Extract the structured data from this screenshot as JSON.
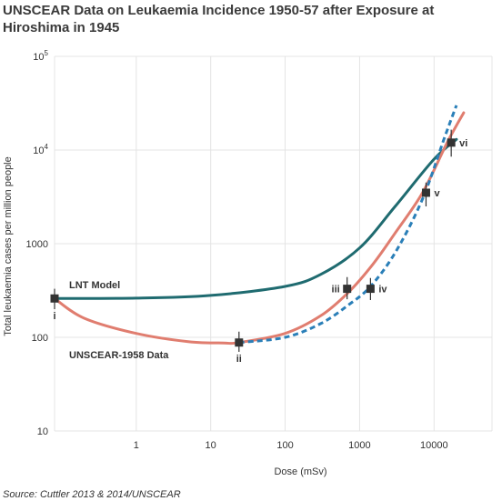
{
  "title": "UNSCEAR Data on Leukaemia Incidence 1950-57 after Exposure at Hiroshima in 1945",
  "source": "Source: Cuttler 2013 & 2014/UNSCEAR",
  "colors": {
    "lnt": "#1f6b70",
    "unscear": "#e07d6f",
    "dashed": "#2a7fb8",
    "grid": "#e4e4e4",
    "point": "#333333"
  },
  "chart_data": {
    "type": "line",
    "xlabel": "Dose (mSv)",
    "ylabel": "Total leukaemia cases per million people",
    "xscale": "log",
    "yscale": "log",
    "xlim": [
      0.08,
      60000
    ],
    "ylim": [
      10,
      100000
    ],
    "x_ticks": [
      {
        "value": 1,
        "label": "1"
      },
      {
        "value": 10,
        "label": "10"
      },
      {
        "value": 100,
        "label": "100"
      },
      {
        "value": 1000,
        "label": "1000"
      },
      {
        "value": 10000,
        "label": "10000"
      }
    ],
    "y_ticks": [
      {
        "value": 10,
        "label": "10",
        "sup": ""
      },
      {
        "value": 100,
        "label": "100",
        "sup": ""
      },
      {
        "value": 1000,
        "label": "1000",
        "sup": ""
      },
      {
        "value": 10000,
        "label": "10",
        "sup": "4"
      },
      {
        "value": 100000,
        "label": "10",
        "sup": "5"
      }
    ],
    "grid": true,
    "series": [
      {
        "name": "LNT Model",
        "style": "solid",
        "x": [
          0.08,
          1,
          10,
          100,
          300,
          1000,
          3000,
          10000,
          20000
        ],
        "y": [
          260,
          262,
          280,
          350,
          470,
          900,
          2500,
          8000,
          13000
        ]
      },
      {
        "name": "UNSCEAR-1958 Data",
        "style": "solid",
        "x": [
          0.08,
          0.2,
          1,
          5,
          15,
          24,
          100,
          300,
          700,
          1500,
          3000,
          7000,
          15000,
          25000
        ],
        "y": [
          260,
          160,
          110,
          90,
          87,
          88,
          110,
          170,
          300,
          600,
          1300,
          3500,
          12000,
          25000
        ]
      },
      {
        "name": "",
        "style": "dashed",
        "x": [
          24,
          100,
          300,
          700,
          1400,
          3000,
          7000,
          14000,
          20000
        ],
        "y": [
          88,
          100,
          140,
          220,
          350,
          800,
          3000,
          14000,
          30000
        ]
      }
    ],
    "points": [
      {
        "label": "i",
        "x": 0.08,
        "y": 260,
        "err": [
          200,
          330
        ],
        "label_pos": "below"
      },
      {
        "label": "ii",
        "x": 24,
        "y": 88,
        "err": [
          70,
          115
        ],
        "label_pos": "below"
      },
      {
        "label": "iii",
        "x": 680,
        "y": 330,
        "err": [
          255,
          440
        ],
        "label_pos": "left"
      },
      {
        "label": "iv",
        "x": 1400,
        "y": 330,
        "err": [
          250,
          430
        ],
        "label_pos": "right"
      },
      {
        "label": "v",
        "x": 7800,
        "y": 3500,
        "err": [
          2500,
          4500
        ],
        "label_pos": "right"
      },
      {
        "label": "vi",
        "x": 17000,
        "y": 12000,
        "err": [
          8500,
          16500
        ],
        "label_pos": "right"
      }
    ]
  }
}
